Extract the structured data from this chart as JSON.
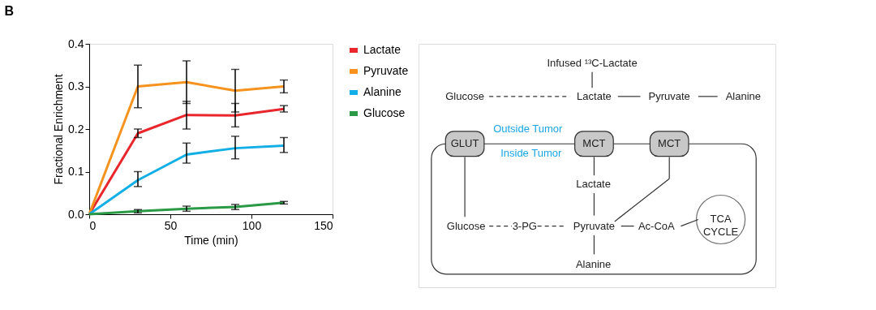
{
  "chart_data": [
    {
      "type": "line",
      "annotations": [
        "B"
      ],
      "xlabel": "Time (min)",
      "ylabel": "Fractional Enrichment",
      "x": [
        0,
        30,
        60,
        90,
        120
      ],
      "xlim": [
        0,
        150
      ],
      "xticks": [
        0,
        50,
        100,
        150
      ],
      "ylim": [
        0,
        0.4
      ],
      "yticks": [
        {
          "value": 0,
          "label": "0.0"
        },
        0.1,
        0.2,
        0.3,
        0.4
      ],
      "grid": false,
      "legend": "right",
      "marker": "none",
      "line_style": "solid",
      "series": [
        {
          "name": "Lactate",
          "color": "#e8262b",
          "values": [
            0,
            0.19,
            0.233,
            0.232,
            0.247
          ],
          "errors": [
            null,
            [
              0.18,
              0.2
            ],
            [
              0.2,
              0.265
            ],
            [
              0.205,
              0.26
            ],
            [
              0.24,
              0.255
            ]
          ]
        },
        {
          "name": "Pyruvate",
          "color": "#f6931e",
          "values": [
            0,
            0.3,
            0.31,
            0.29,
            0.3
          ],
          "errors": [
            null,
            [
              0.25,
              0.35
            ],
            [
              0.26,
              0.36
            ],
            [
              0.24,
              0.34
            ],
            [
              0.285,
              0.315
            ]
          ]
        },
        {
          "name": "Alanine",
          "color": "#12aee6",
          "values": [
            0,
            0.08,
            0.14,
            0.155,
            0.161
          ],
          "errors": [
            null,
            [
              0.065,
              0.1
            ],
            [
              0.12,
              0.167
            ],
            [
              0.13,
              0.183
            ],
            [
              0.145,
              0.18
            ]
          ]
        },
        {
          "name": "Glucose",
          "color": "#2a9a47",
          "values": [
            0,
            0.007,
            0.013,
            0.017,
            0.027
          ],
          "errors": [
            null,
            [
              0.003,
              0.011
            ],
            [
              0.007,
              0.019
            ],
            [
              0.011,
              0.023
            ],
            [
              0.024,
              0.03
            ]
          ]
        }
      ]
    },
    {
      "type": "other",
      "annotations": [
        "Infused ¹³C-Lactate",
        "Glucose",
        "Lactate",
        "Pyruvate",
        "Alanine",
        "GLUT",
        "MCT",
        "MCT",
        "Outside Tumor",
        "Inside Tumor",
        "Lactate",
        "Glucose",
        "3-PG",
        "Pyruvate",
        "Ac-CoA",
        "Alanine",
        "TCA CYCLE"
      ]
    }
  ]
}
